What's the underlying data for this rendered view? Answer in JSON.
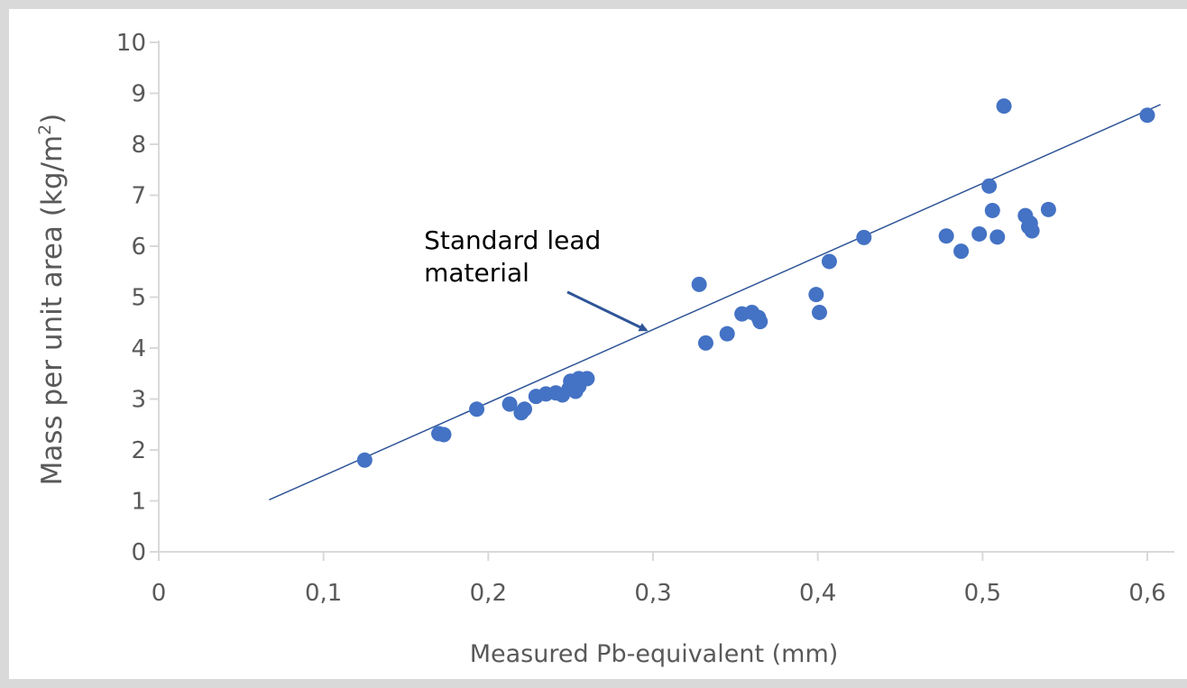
{
  "chart_data": {
    "type": "scatter",
    "title": "",
    "xlabel": "Measured Pb-equivalent (mm)",
    "ylabel": {
      "text": "Mass per unit area (kg/m",
      "superscript": "2",
      "suffix": ")"
    },
    "xlim": [
      0,
      0.6
    ],
    "ylim": [
      0,
      10
    ],
    "x_ticks": [
      "0",
      "0,1",
      "0,2",
      "0,3",
      "0,4",
      "0,5",
      "0,6"
    ],
    "y_ticks": [
      "0",
      "1",
      "2",
      "3",
      "4",
      "5",
      "6",
      "7",
      "8",
      "9",
      "10"
    ],
    "grid": false,
    "legend": "none",
    "colors": {
      "points": "#4472c4",
      "line": "#2f5597",
      "axis": "#d9d9d9"
    },
    "series": [
      {
        "points": [
          [
            0.125,
            1.8
          ],
          [
            0.17,
            2.32
          ],
          [
            0.173,
            2.3
          ],
          [
            0.193,
            2.8
          ],
          [
            0.213,
            2.9
          ],
          [
            0.22,
            2.73
          ],
          [
            0.222,
            2.8
          ],
          [
            0.229,
            3.05
          ],
          [
            0.235,
            3.1
          ],
          [
            0.241,
            3.12
          ],
          [
            0.245,
            3.08
          ],
          [
            0.249,
            3.2
          ],
          [
            0.25,
            3.35
          ],
          [
            0.252,
            3.3
          ],
          [
            0.253,
            3.15
          ],
          [
            0.255,
            3.25
          ],
          [
            0.255,
            3.4
          ],
          [
            0.26,
            3.4
          ],
          [
            0.328,
            5.25
          ],
          [
            0.332,
            4.1
          ],
          [
            0.345,
            4.28
          ],
          [
            0.354,
            4.67
          ],
          [
            0.36,
            4.7
          ],
          [
            0.364,
            4.6
          ],
          [
            0.365,
            4.52
          ],
          [
            0.399,
            5.05
          ],
          [
            0.401,
            4.7
          ],
          [
            0.407,
            5.7
          ],
          [
            0.428,
            6.17
          ],
          [
            0.478,
            6.2
          ],
          [
            0.487,
            5.9
          ],
          [
            0.498,
            6.24
          ],
          [
            0.504,
            7.18
          ],
          [
            0.506,
            6.7
          ],
          [
            0.509,
            6.18
          ],
          [
            0.513,
            8.75
          ],
          [
            0.526,
            6.6
          ],
          [
            0.528,
            6.38
          ],
          [
            0.529,
            6.45
          ],
          [
            0.53,
            6.3
          ],
          [
            0.54,
            6.72
          ],
          [
            0.6,
            8.57
          ]
        ]
      }
    ],
    "trend_line": {
      "x": [
        0.067,
        0.608
      ],
      "y": [
        1.02,
        8.78
      ]
    },
    "annotation": {
      "lines": [
        "Standard lead",
        "material"
      ],
      "arrow_from": [
        0.248,
        5.1
      ],
      "arrow_to": [
        0.296,
        4.35
      ]
    }
  }
}
